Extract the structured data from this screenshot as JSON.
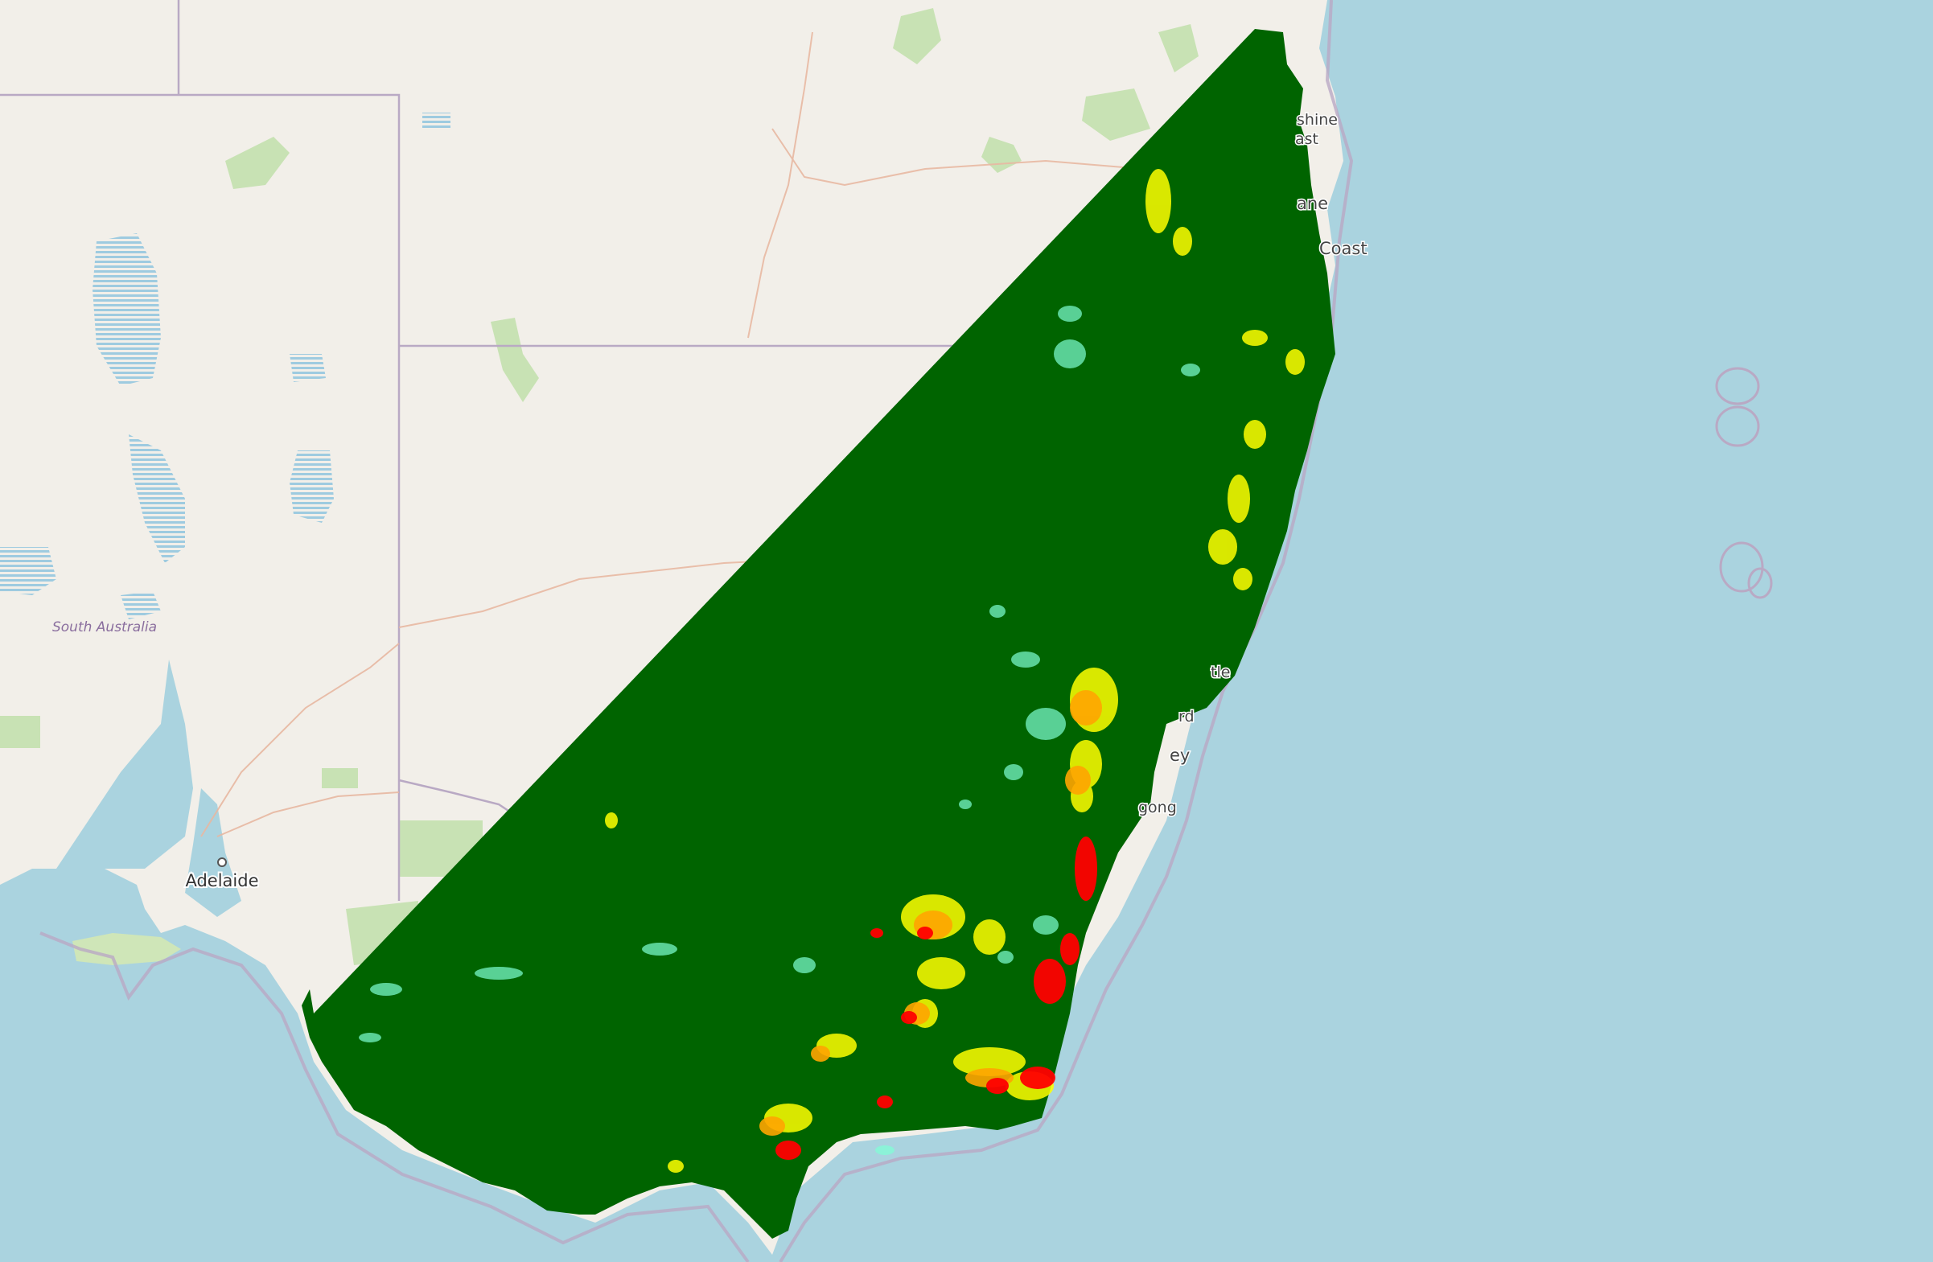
{
  "map": {
    "colors": {
      "ocean": "#aad3df",
      "land": "#f2efe9",
      "park": "#c8e2b4",
      "border": "#b9a9c4",
      "road": "#e8b8a2",
      "water_lines": "#9ecbe0",
      "overlay_base": "#006400",
      "overlay_light": "#7fffd4",
      "overlay_yellow": "#ffff00",
      "overlay_orange": "#ffa500",
      "overlay_red": "#ff0000"
    },
    "labels": {
      "south_australia": "South Australia",
      "adelaide": "Adelaide",
      "sunshine_1": "shine",
      "sunshine_2": "ast",
      "brisbane": "ane",
      "gold_coast": "Coast",
      "newcastle": "tle",
      "gosford": "rd",
      "sydney": "ey",
      "wollongong": "gong"
    }
  }
}
